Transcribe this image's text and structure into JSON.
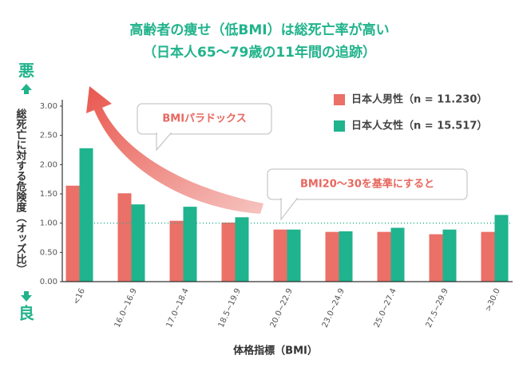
{
  "chart_data": {
    "type": "bar",
    "title": "高齢者の痩せ（低BMI）は総死亡率が高い",
    "subtitle": "（日本人65～79歳の11年間の追跡）",
    "y_label": "総死亡に対する危険度（オッズ比）",
    "x_label": "体格指標（BMI）",
    "top_label": "悪",
    "bottom_label": "良",
    "annotations": [
      "BMIパラドックス",
      "BMI20～30を基準にすると"
    ],
    "categories": [
      "<16",
      "16.0~16.9",
      "17.0~18.4",
      "18.5~19.9",
      "20.0~22.9",
      "23.0~24.9",
      "25.0~27.4",
      "27.5~29.9",
      ">30.0"
    ],
    "series": [
      {
        "name": "日本人男性（n = 11.230）",
        "color": "#ea7068",
        "values": [
          1.64,
          1.51,
          1.04,
          1.01,
          0.89,
          0.85,
          0.85,
          0.81,
          0.85
        ]
      },
      {
        "name": "日本人女性（n = 15.517）",
        "color": "#1fb38e",
        "values": [
          2.28,
          1.32,
          1.28,
          1.1,
          0.89,
          0.86,
          0.92,
          0.89,
          1.14
        ]
      }
    ],
    "ylim": [
      0,
      3
    ],
    "yticks": [
      {
        "value": 0,
        "label": "0.00"
      },
      {
        "value": 0.5,
        "label": "0.50"
      },
      {
        "value": 1,
        "label": "1.00"
      },
      {
        "value": 1.5,
        "label": "1.50"
      },
      {
        "value": 2,
        "label": "2.00"
      },
      {
        "value": 2.5,
        "label": "2.50"
      },
      {
        "value": 3,
        "label": "3.00"
      }
    ],
    "reference_line": 1,
    "legend": "upper right"
  }
}
